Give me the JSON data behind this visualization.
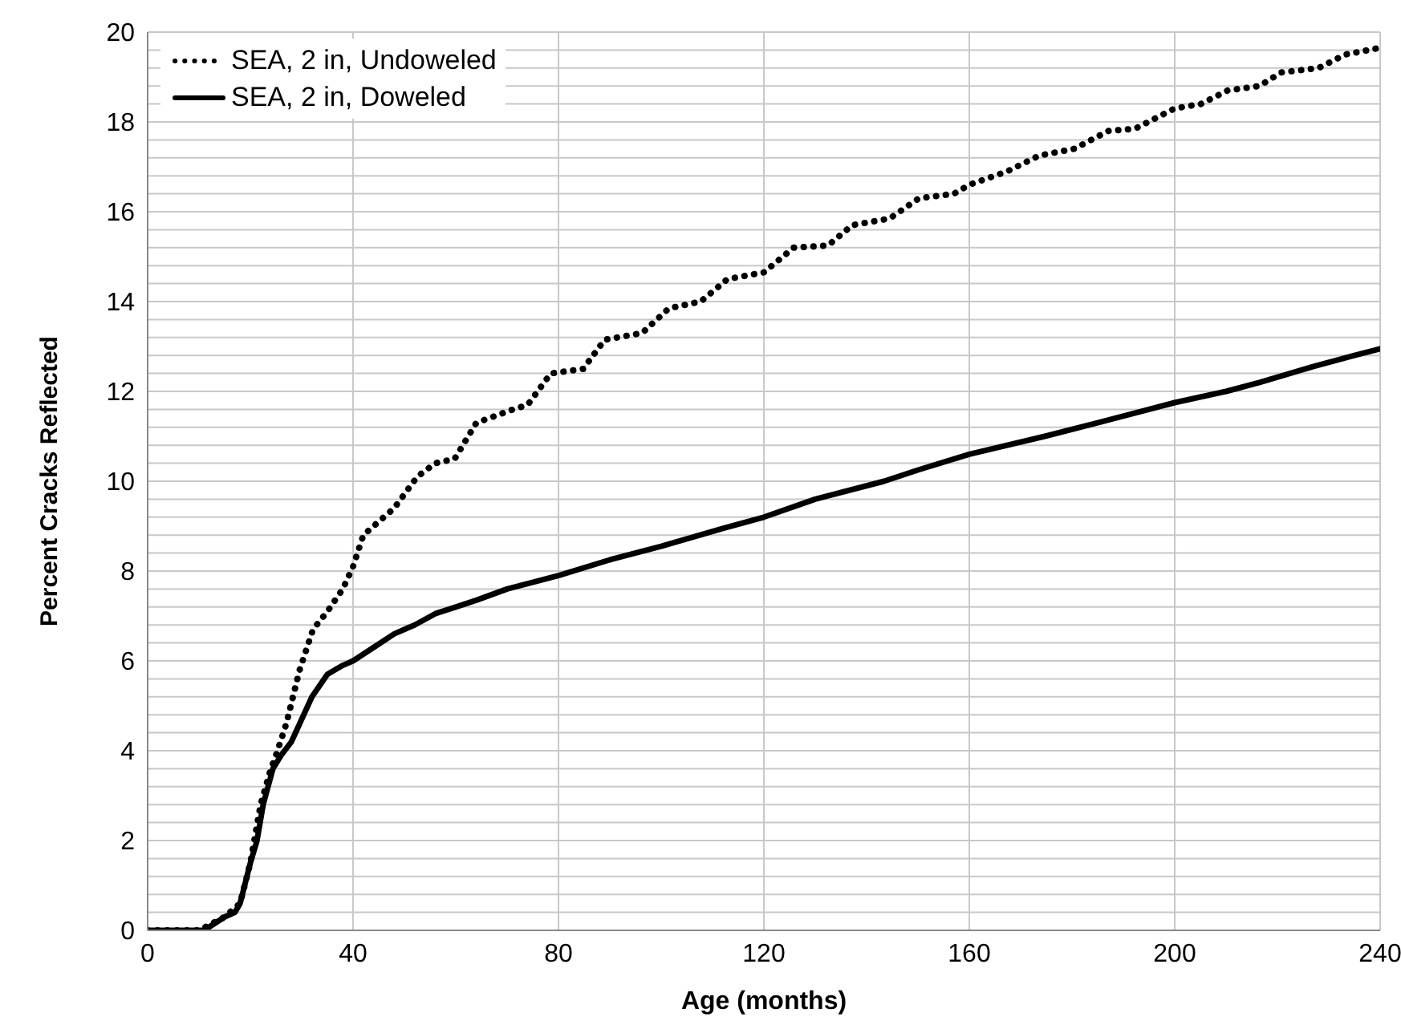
{
  "chart_data": {
    "type": "line",
    "xlabel": "Age (months)",
    "ylabel": "Percent Cracks Reflected",
    "xlim": [
      0,
      240
    ],
    "xticks": [
      0,
      40,
      80,
      120,
      160,
      200,
      240
    ],
    "ylim": [
      0,
      20
    ],
    "yticks": [
      0,
      {
        "value": 0.4,
        "label": null
      },
      {
        "value": 0.8,
        "label": null
      },
      {
        "value": 1.2,
        "label": null
      },
      {
        "value": 1.6,
        "label": null
      },
      2,
      {
        "value": 2.4,
        "label": null
      },
      {
        "value": 2.8,
        "label": null
      },
      {
        "value": 3.2,
        "label": null
      },
      {
        "value": 3.6,
        "label": null
      },
      4,
      {
        "value": 4.4,
        "label": null
      },
      {
        "value": 4.8,
        "label": null
      },
      {
        "value": 5.2,
        "label": null
      },
      {
        "value": 5.6,
        "label": null
      },
      6,
      {
        "value": 6.4,
        "label": null
      },
      {
        "value": 6.8,
        "label": null
      },
      {
        "value": 7.2,
        "label": null
      },
      {
        "value": 7.6,
        "label": null
      },
      8,
      {
        "value": 8.4,
        "label": null
      },
      {
        "value": 8.8,
        "label": null
      },
      {
        "value": 9.2,
        "label": null
      },
      {
        "value": 9.6,
        "label": null
      },
      10,
      {
        "value": 10.4,
        "label": null
      },
      {
        "value": 10.8,
        "label": null
      },
      {
        "value": 11.2,
        "label": null
      },
      {
        "value": 11.6,
        "label": null
      },
      12,
      {
        "value": 12.4,
        "label": null
      },
      {
        "value": 12.8,
        "label": null
      },
      {
        "value": 13.2,
        "label": null
      },
      {
        "value": 13.6,
        "label": null
      },
      14,
      {
        "value": 14.4,
        "label": null
      },
      {
        "value": 14.8,
        "label": null
      },
      {
        "value": 15.2,
        "label": null
      },
      {
        "value": 15.6,
        "label": null
      },
      16,
      {
        "value": 16.4,
        "label": null
      },
      {
        "value": 16.8,
        "label": null
      },
      {
        "value": 17.2,
        "label": null
      },
      {
        "value": 17.6,
        "label": null
      },
      18,
      {
        "value": 18.4,
        "label": null
      },
      {
        "value": 18.8,
        "label": null
      },
      {
        "value": 19.2,
        "label": null
      },
      {
        "value": 19.6,
        "label": null
      },
      20
    ],
    "grid": true,
    "legend": "top left",
    "marker": "none",
    "series": [
      {
        "name": "SEA, 2 in, Undoweled",
        "color": "#000000",
        "line_style": "dotted",
        "x": [
          0,
          10,
          15,
          18,
          20,
          22,
          24,
          25,
          27,
          29.6,
          32.2,
          35,
          38,
          40,
          42,
          45,
          48,
          52.5,
          56,
          59.8,
          64,
          71.2,
          74,
          78.5,
          84.8,
          89,
          96.3,
          101.5,
          107.7,
          112.9,
          120,
          125.8,
          132.5,
          137.2,
          144.5,
          150.2,
          157,
          160,
          167.4,
          173.6,
          180.4,
          187.1,
          192.3,
          200,
          205.1,
          210.3,
          216.5,
          220.7,
          228,
          233.2,
          240
        ],
        "values": [
          0,
          0,
          0.3,
          0.6,
          1.5,
          2.8,
          3.6,
          3.9,
          4.6,
          5.8,
          6.7,
          7.1,
          7.6,
          8.1,
          8.8,
          9.1,
          9.4,
          10.1,
          10.4,
          10.5,
          11.3,
          11.6,
          11.7,
          12.4,
          12.5,
          13.15,
          13.3,
          13.85,
          14.0,
          14.5,
          14.65,
          15.2,
          15.25,
          15.7,
          15.85,
          16.3,
          16.4,
          16.6,
          16.9,
          17.25,
          17.4,
          17.8,
          17.85,
          18.3,
          18.4,
          18.7,
          18.8,
          19.1,
          19.2,
          19.5,
          19.65
        ]
      },
      {
        "name": "SEA, 2 in, Doweled",
        "color": "#000000",
        "line_style": "solid",
        "x": [
          0,
          11,
          15,
          17,
          18,
          20,
          21.3,
          22.5,
          24.4,
          26,
          28,
          30,
          32,
          35,
          38,
          40,
          44,
          48,
          52,
          56,
          60,
          64,
          70,
          80,
          90,
          100,
          112,
          120,
          130,
          143.4,
          150,
          160,
          174.7,
          185,
          200,
          210,
          216.5,
          226.9,
          235,
          240
        ],
        "values": [
          0,
          0,
          0.3,
          0.4,
          0.6,
          1.5,
          2.0,
          2.8,
          3.6,
          3.9,
          4.2,
          4.7,
          5.2,
          5.7,
          5.9,
          6.0,
          6.3,
          6.6,
          6.8,
          7.05,
          7.2,
          7.35,
          7.6,
          7.9,
          8.25,
          8.55,
          8.95,
          9.2,
          9.6,
          10.0,
          10.25,
          10.6,
          11.0,
          11.3,
          11.75,
          12.0,
          12.2,
          12.55,
          12.8,
          12.95
        ]
      }
    ]
  }
}
